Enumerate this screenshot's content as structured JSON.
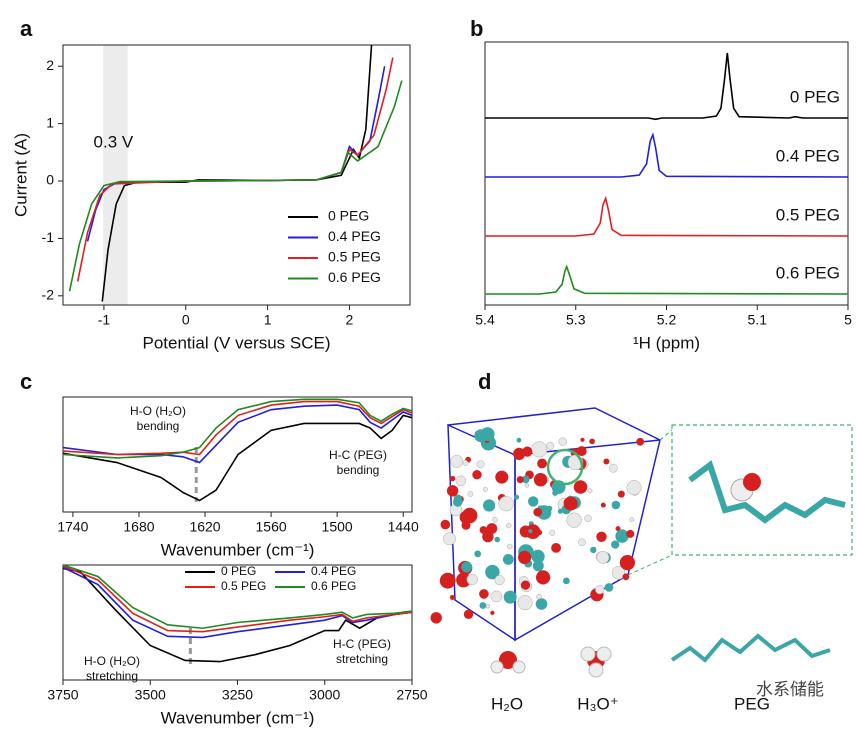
{
  "chart_data": [
    {
      "type": "line",
      "panel": "a",
      "xlabel": "Potential (V versus SCE)",
      "ylabel": "Current (A)",
      "xlim": [
        -1.5,
        2.74
      ],
      "ylim": [
        -2.16,
        2.37
      ],
      "xticks": [
        -1,
        0,
        1,
        2
      ],
      "yticks": [
        -2,
        -1,
        0,
        1,
        2
      ],
      "shaded_region": [
        -1.01,
        -0.71
      ],
      "annotation": "0.3 V",
      "legend": "lower right",
      "series": [
        {
          "name": "0 PEG",
          "color": "#000000",
          "x": [
            -1.02,
            -0.95,
            -0.85,
            -0.75,
            -0.6,
            0,
            0.15,
            1,
            1.6,
            1.9,
            2.0,
            2.05,
            2.12,
            2.2,
            2.27
          ],
          "values": [
            -2.1,
            -1.2,
            -0.4,
            -0.08,
            -0.02,
            -0.02,
            0.02,
            0.01,
            0.02,
            0.1,
            0.4,
            0.55,
            0.4,
            0.9,
            2.37
          ]
        },
        {
          "name": "0.4 PEG",
          "color": "#1f1fe0",
          "x": [
            -1.2,
            -1.1,
            -1.0,
            -0.85,
            0,
            1,
            1.6,
            1.9,
            2.0,
            2.1,
            2.25,
            2.35,
            2.43
          ],
          "values": [
            -1.05,
            -0.5,
            -0.15,
            -0.03,
            0,
            0.01,
            0.02,
            0.15,
            0.6,
            0.45,
            0.7,
            1.4,
            2.0
          ]
        },
        {
          "name": "0.5 PEG",
          "color": "#e01f1f",
          "x": [
            -1.32,
            -1.2,
            -1.05,
            -0.9,
            0,
            1,
            1.6,
            1.9,
            2.0,
            2.1,
            2.3,
            2.45,
            2.53
          ],
          "values": [
            -1.75,
            -0.9,
            -0.25,
            -0.05,
            0,
            0.01,
            0.02,
            0.15,
            0.55,
            0.45,
            0.8,
            1.6,
            2.15
          ]
        },
        {
          "name": "0.6 PEG",
          "color": "#1f8a1f",
          "x": [
            -1.42,
            -1.3,
            -1.15,
            -1.0,
            -0.8,
            0,
            1,
            1.6,
            1.9,
            1.98,
            2.1,
            2.35,
            2.55,
            2.64
          ],
          "values": [
            -1.92,
            -1.1,
            -0.4,
            -0.08,
            -0.01,
            0,
            0.01,
            0.02,
            0.15,
            0.5,
            0.35,
            0.6,
            1.3,
            1.75
          ]
        }
      ]
    },
    {
      "type": "line",
      "panel": "b",
      "xlabel": "¹H (ppm)",
      "xlim": [
        5.4,
        5.0
      ],
      "ylim": [
        0,
        1
      ],
      "xticks": [
        5.4,
        5.3,
        5.2,
        5.1,
        5
      ],
      "series": [
        {
          "name": "0 PEG",
          "color": "#000000",
          "x": [
            5.4,
            5.3,
            5.22,
            5.212,
            5.205,
            5.16,
            5.145,
            5.14,
            5.136,
            5.133,
            5.13,
            5.126,
            5.12,
            5.065,
            5.058,
            5.05,
            5.0
          ],
          "values": [
            0,
            0,
            0,
            -0.02,
            0,
            0,
            0.03,
            0.15,
            0.6,
            1.0,
            0.6,
            0.15,
            0.02,
            0,
            0.02,
            0,
            0
          ]
        },
        {
          "name": "0.4 PEG",
          "color": "#1f1fe0",
          "x": [
            5.4,
            5.25,
            5.23,
            5.222,
            5.218,
            5.215,
            5.212,
            5.208,
            5.2,
            5.0
          ],
          "values": [
            0,
            0,
            0.03,
            0.2,
            0.55,
            0.65,
            0.45,
            0.1,
            0.01,
            0
          ]
        },
        {
          "name": "0.5 PEG",
          "color": "#e01f1f",
          "x": [
            5.4,
            5.3,
            5.28,
            5.273,
            5.27,
            5.267,
            5.264,
            5.26,
            5.25,
            5.0
          ],
          "values": [
            0,
            0,
            0.03,
            0.2,
            0.48,
            0.58,
            0.4,
            0.1,
            0.01,
            0
          ]
        },
        {
          "name": "0.6 PEG",
          "color": "#1f8a1f",
          "x": [
            5.4,
            5.34,
            5.322,
            5.315,
            5.312,
            5.31,
            5.307,
            5.302,
            5.29,
            5.0
          ],
          "values": [
            0,
            0,
            0.03,
            0.15,
            0.35,
            0.42,
            0.3,
            0.08,
            0.01,
            0
          ]
        }
      ]
    },
    {
      "type": "line",
      "panel": "c",
      "xlabel": "Wavenumber (cm⁻¹)",
      "xlim": [
        1749,
        1432
      ],
      "ylim": [
        0,
        1
      ],
      "xticks": [
        1740,
        1680,
        1620,
        1560,
        1500,
        1440
      ],
      "dashed_line": 1628,
      "annotations": [
        [
          "H-O (H₂O)",
          "bending"
        ],
        [
          "H-C (PEG)",
          "bending"
        ]
      ],
      "series": [
        {
          "name": "0 PEG",
          "color": "#000000",
          "x": [
            1749,
            1700,
            1660,
            1640,
            1625,
            1610,
            1590,
            1560,
            1530,
            1500,
            1480,
            1470,
            1460,
            1450,
            1440,
            1432
          ],
          "values": [
            0.51,
            0.43,
            0.3,
            0.17,
            0.1,
            0.19,
            0.5,
            0.71,
            0.77,
            0.77,
            0.77,
            0.73,
            0.64,
            0.71,
            0.84,
            0.82
          ]
        },
        {
          "name": "0.4 PEG",
          "color": "#1f1fe0",
          "x": [
            1749,
            1700,
            1660,
            1640,
            1625,
            1610,
            1590,
            1560,
            1530,
            1500,
            1480,
            1470,
            1460,
            1450,
            1440,
            1432
          ],
          "values": [
            0.56,
            0.5,
            0.5,
            0.48,
            0.43,
            0.58,
            0.78,
            0.89,
            0.92,
            0.93,
            0.89,
            0.78,
            0.73,
            0.8,
            0.87,
            0.84
          ]
        },
        {
          "name": "0.5 PEG",
          "color": "#e01f1f",
          "x": [
            1749,
            1700,
            1660,
            1640,
            1625,
            1610,
            1590,
            1560,
            1530,
            1500,
            1480,
            1470,
            1460,
            1450,
            1440,
            1432
          ],
          "values": [
            0.53,
            0.5,
            0.51,
            0.52,
            0.5,
            0.67,
            0.84,
            0.93,
            0.96,
            0.96,
            0.92,
            0.82,
            0.77,
            0.83,
            0.89,
            0.86
          ]
        },
        {
          "name": "0.6 PEG",
          "color": "#1f8a1f",
          "x": [
            1749,
            1700,
            1660,
            1640,
            1625,
            1610,
            1590,
            1560,
            1530,
            1500,
            1480,
            1470,
            1460,
            1450,
            1440,
            1432
          ],
          "values": [
            0.5,
            0.47,
            0.49,
            0.52,
            0.56,
            0.73,
            0.89,
            0.96,
            0.98,
            0.98,
            0.95,
            0.84,
            0.79,
            0.85,
            0.9,
            0.88
          ]
        }
      ]
    },
    {
      "type": "line",
      "xlabel": "Wavenumber (cm⁻¹)",
      "xlim": [
        3750,
        2750
      ],
      "ylim": [
        0,
        1
      ],
      "xticks": [
        3750,
        3500,
        3250,
        3000,
        2750
      ],
      "dashed_line": 3385,
      "annotations": [
        [
          "H-O (H₂O)",
          "stretching"
        ],
        [
          "H-C (PEG)",
          "stretching"
        ]
      ],
      "legend": "upper right",
      "series": [
        {
          "name": "0 PEG",
          "color": "#000000",
          "x": [
            3750,
            3700,
            3600,
            3500,
            3400,
            3300,
            3200,
            3100,
            3000,
            2960,
            2940,
            2900,
            2850,
            2800,
            2750
          ],
          "values": [
            0.97,
            0.94,
            0.61,
            0.3,
            0.17,
            0.16,
            0.22,
            0.3,
            0.43,
            0.43,
            0.52,
            0.45,
            0.54,
            0.57,
            0.59
          ]
        },
        {
          "name": "0.4 PEG",
          "color": "#1f1fe0",
          "x": [
            3750,
            3650,
            3550,
            3450,
            3350,
            3250,
            3100,
            3000,
            2950,
            2920,
            2880,
            2800,
            2750
          ],
          "values": [
            0.98,
            0.83,
            0.52,
            0.38,
            0.37,
            0.42,
            0.48,
            0.52,
            0.56,
            0.5,
            0.52,
            0.57,
            0.59
          ]
        },
        {
          "name": "0.5 PEG",
          "color": "#e01f1f",
          "x": [
            3750,
            3650,
            3550,
            3450,
            3350,
            3250,
            3100,
            3000,
            2950,
            2920,
            2880,
            2800,
            2750
          ],
          "values": [
            0.99,
            0.87,
            0.58,
            0.43,
            0.42,
            0.46,
            0.52,
            0.55,
            0.57,
            0.51,
            0.54,
            0.57,
            0.59
          ]
        },
        {
          "name": "0.6 PEG",
          "color": "#1f8a1f",
          "x": [
            3750,
            3650,
            3550,
            3450,
            3350,
            3250,
            3100,
            3000,
            2950,
            2920,
            2880,
            2800,
            2750
          ],
          "values": [
            1.0,
            0.9,
            0.63,
            0.48,
            0.45,
            0.5,
            0.54,
            0.57,
            0.59,
            0.54,
            0.57,
            0.58,
            0.6
          ]
        }
      ]
    }
  ],
  "panel_d": {
    "panel": "d",
    "labels": [
      "H₂O",
      "H₃O⁺",
      "PEG"
    ]
  },
  "watermark": "水系储能"
}
